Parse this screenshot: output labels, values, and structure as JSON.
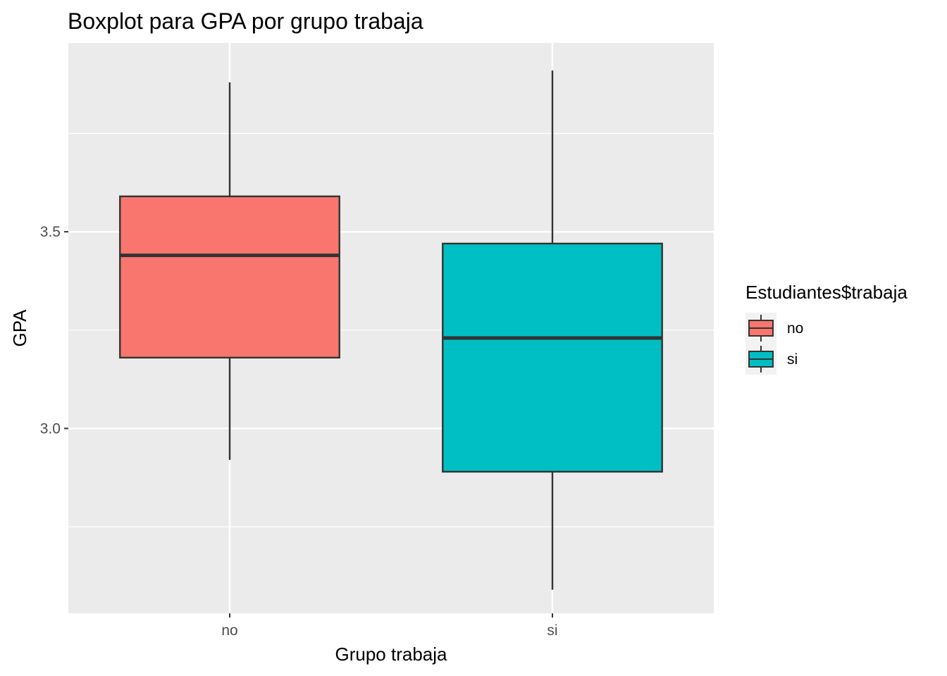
{
  "chart_data": {
    "type": "boxplot",
    "title": "Boxplot para GPA por grupo trabaja",
    "xlabel": "Grupo trabaja",
    "ylabel": "GPA",
    "categories": [
      "no",
      "si"
    ],
    "ylim": [
      2.53,
      3.98
    ],
    "y_ticks": [
      {
        "value": 3.0,
        "label": "3.0"
      },
      {
        "value": 3.5,
        "label": "3.5"
      }
    ],
    "y_minor_grid": [
      2.75,
      3.25,
      3.75
    ],
    "grid": true,
    "boxes": [
      {
        "category": "no",
        "min": 2.92,
        "q1": 3.18,
        "median": 3.44,
        "q3": 3.59,
        "max": 3.88,
        "fill": "#F8766D"
      },
      {
        "category": "si",
        "min": 2.59,
        "q1": 2.89,
        "median": 3.23,
        "q3": 3.47,
        "max": 3.91,
        "fill": "#00BFC4"
      }
    ],
    "legend": {
      "title": "Estudiantes$trabaja",
      "position": "right",
      "entries": [
        {
          "label": "no",
          "color": "#F8766D"
        },
        {
          "label": "si",
          "color": "#00BFC4"
        }
      ]
    },
    "colors": {
      "panel_background": "#EBEBEB",
      "grid": "#FFFFFF",
      "box_outline": "#333333"
    }
  }
}
